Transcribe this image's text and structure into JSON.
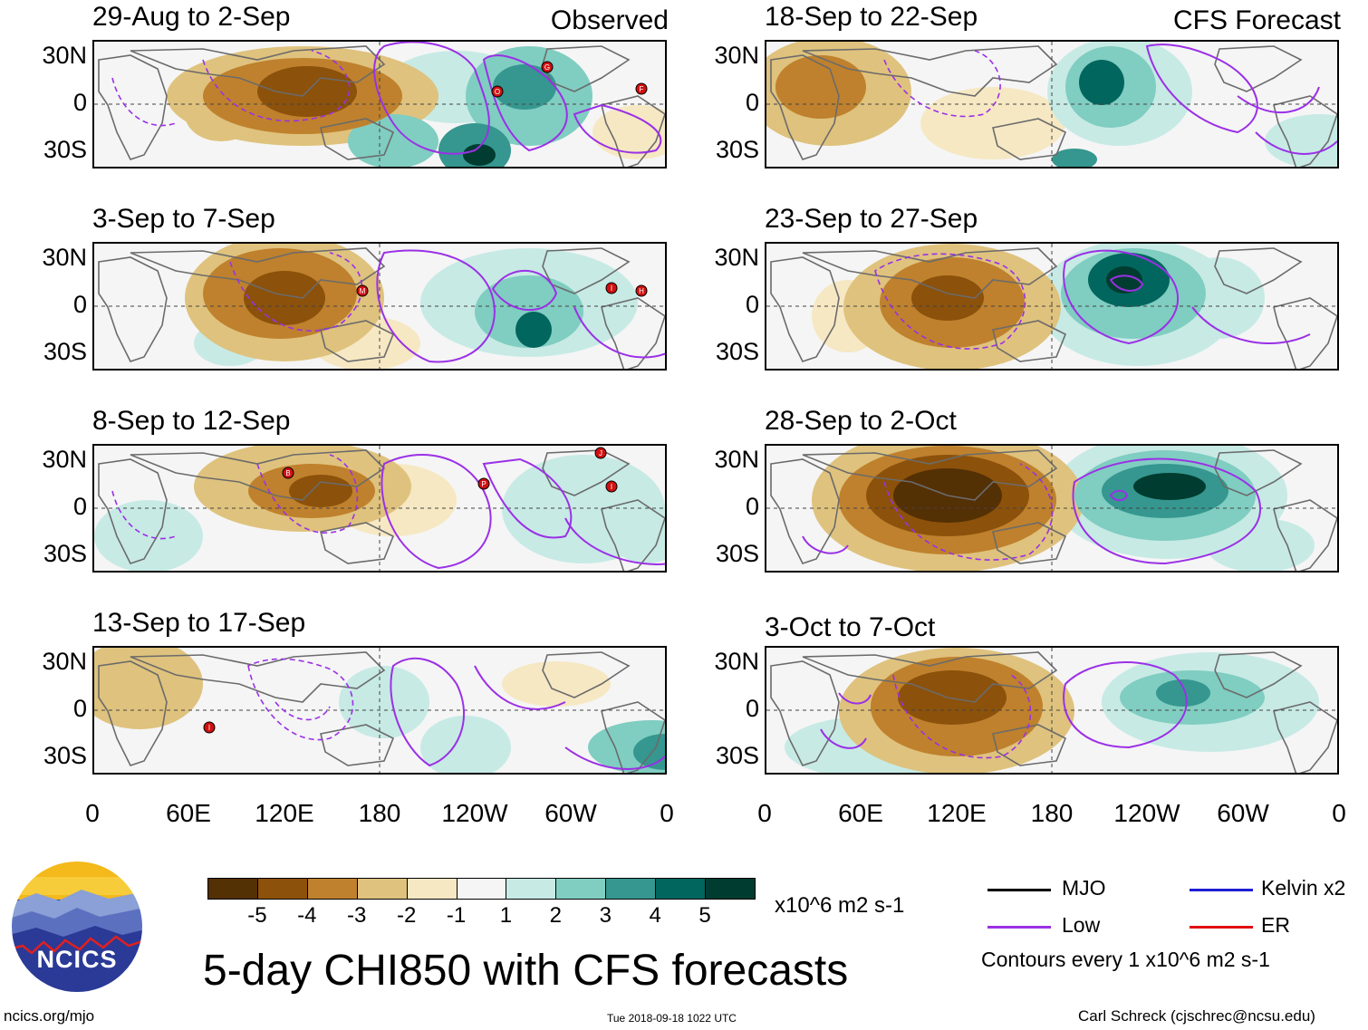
{
  "left_column": {
    "label": "Observed",
    "panels": [
      {
        "period": "29-Aug to 2-Sep"
      },
      {
        "period": "3-Sep to 7-Sep"
      },
      {
        "period": "8-Sep to 12-Sep"
      },
      {
        "period": "13-Sep to 17-Sep"
      }
    ]
  },
  "right_column": {
    "label": "CFS Forecast",
    "panels": [
      {
        "period": "18-Sep to 22-Sep"
      },
      {
        "period": "23-Sep to 27-Sep"
      },
      {
        "period": "28-Sep to 2-Oct"
      },
      {
        "period": "3-Oct to 7-Oct"
      }
    ]
  },
  "lat_labels": [
    "30N",
    "0",
    "30S"
  ],
  "lon_labels": [
    "0",
    "60E",
    "120E",
    "180",
    "120W",
    "60W",
    "0"
  ],
  "colorbar": {
    "ticks": [
      "-5",
      "-4",
      "-3",
      "-2",
      "-1",
      "1",
      "2",
      "3",
      "4",
      "5"
    ],
    "colors": [
      "#543005",
      "#8c510a",
      "#bf812d",
      "#dfc27d",
      "#f6e8c3",
      "#f5f5f5",
      "#c7eae5",
      "#80cdc1",
      "#35978f",
      "#01665e",
      "#003c30"
    ],
    "units": "x10^6 m2 s-1"
  },
  "title": "5-day CHI850 with CFS forecasts",
  "legend": {
    "items": [
      {
        "label": "MJO",
        "color": "#000000"
      },
      {
        "label": "Kelvin x2",
        "color": "#1f1fd6"
      },
      {
        "label": "Low",
        "color": "#9b30e6"
      },
      {
        "label": "ER",
        "color": "#e01010"
      }
    ],
    "note": "Contours every 1 x10^6 m2 s-1"
  },
  "logo_text": "NCICS",
  "footer": {
    "left": "ncics.org/mjo",
    "center": "Tue 2018-09-18 1022 UTC",
    "right": "Carl Schreck (cjschrec@ncsu.edu)"
  },
  "storms": {
    "p0": [
      "O",
      "G",
      "F"
    ],
    "p1": [
      "M",
      "I",
      "H"
    ],
    "p2": [
      "B",
      "P",
      "J",
      "I"
    ],
    "p3": [
      "I"
    ]
  }
}
